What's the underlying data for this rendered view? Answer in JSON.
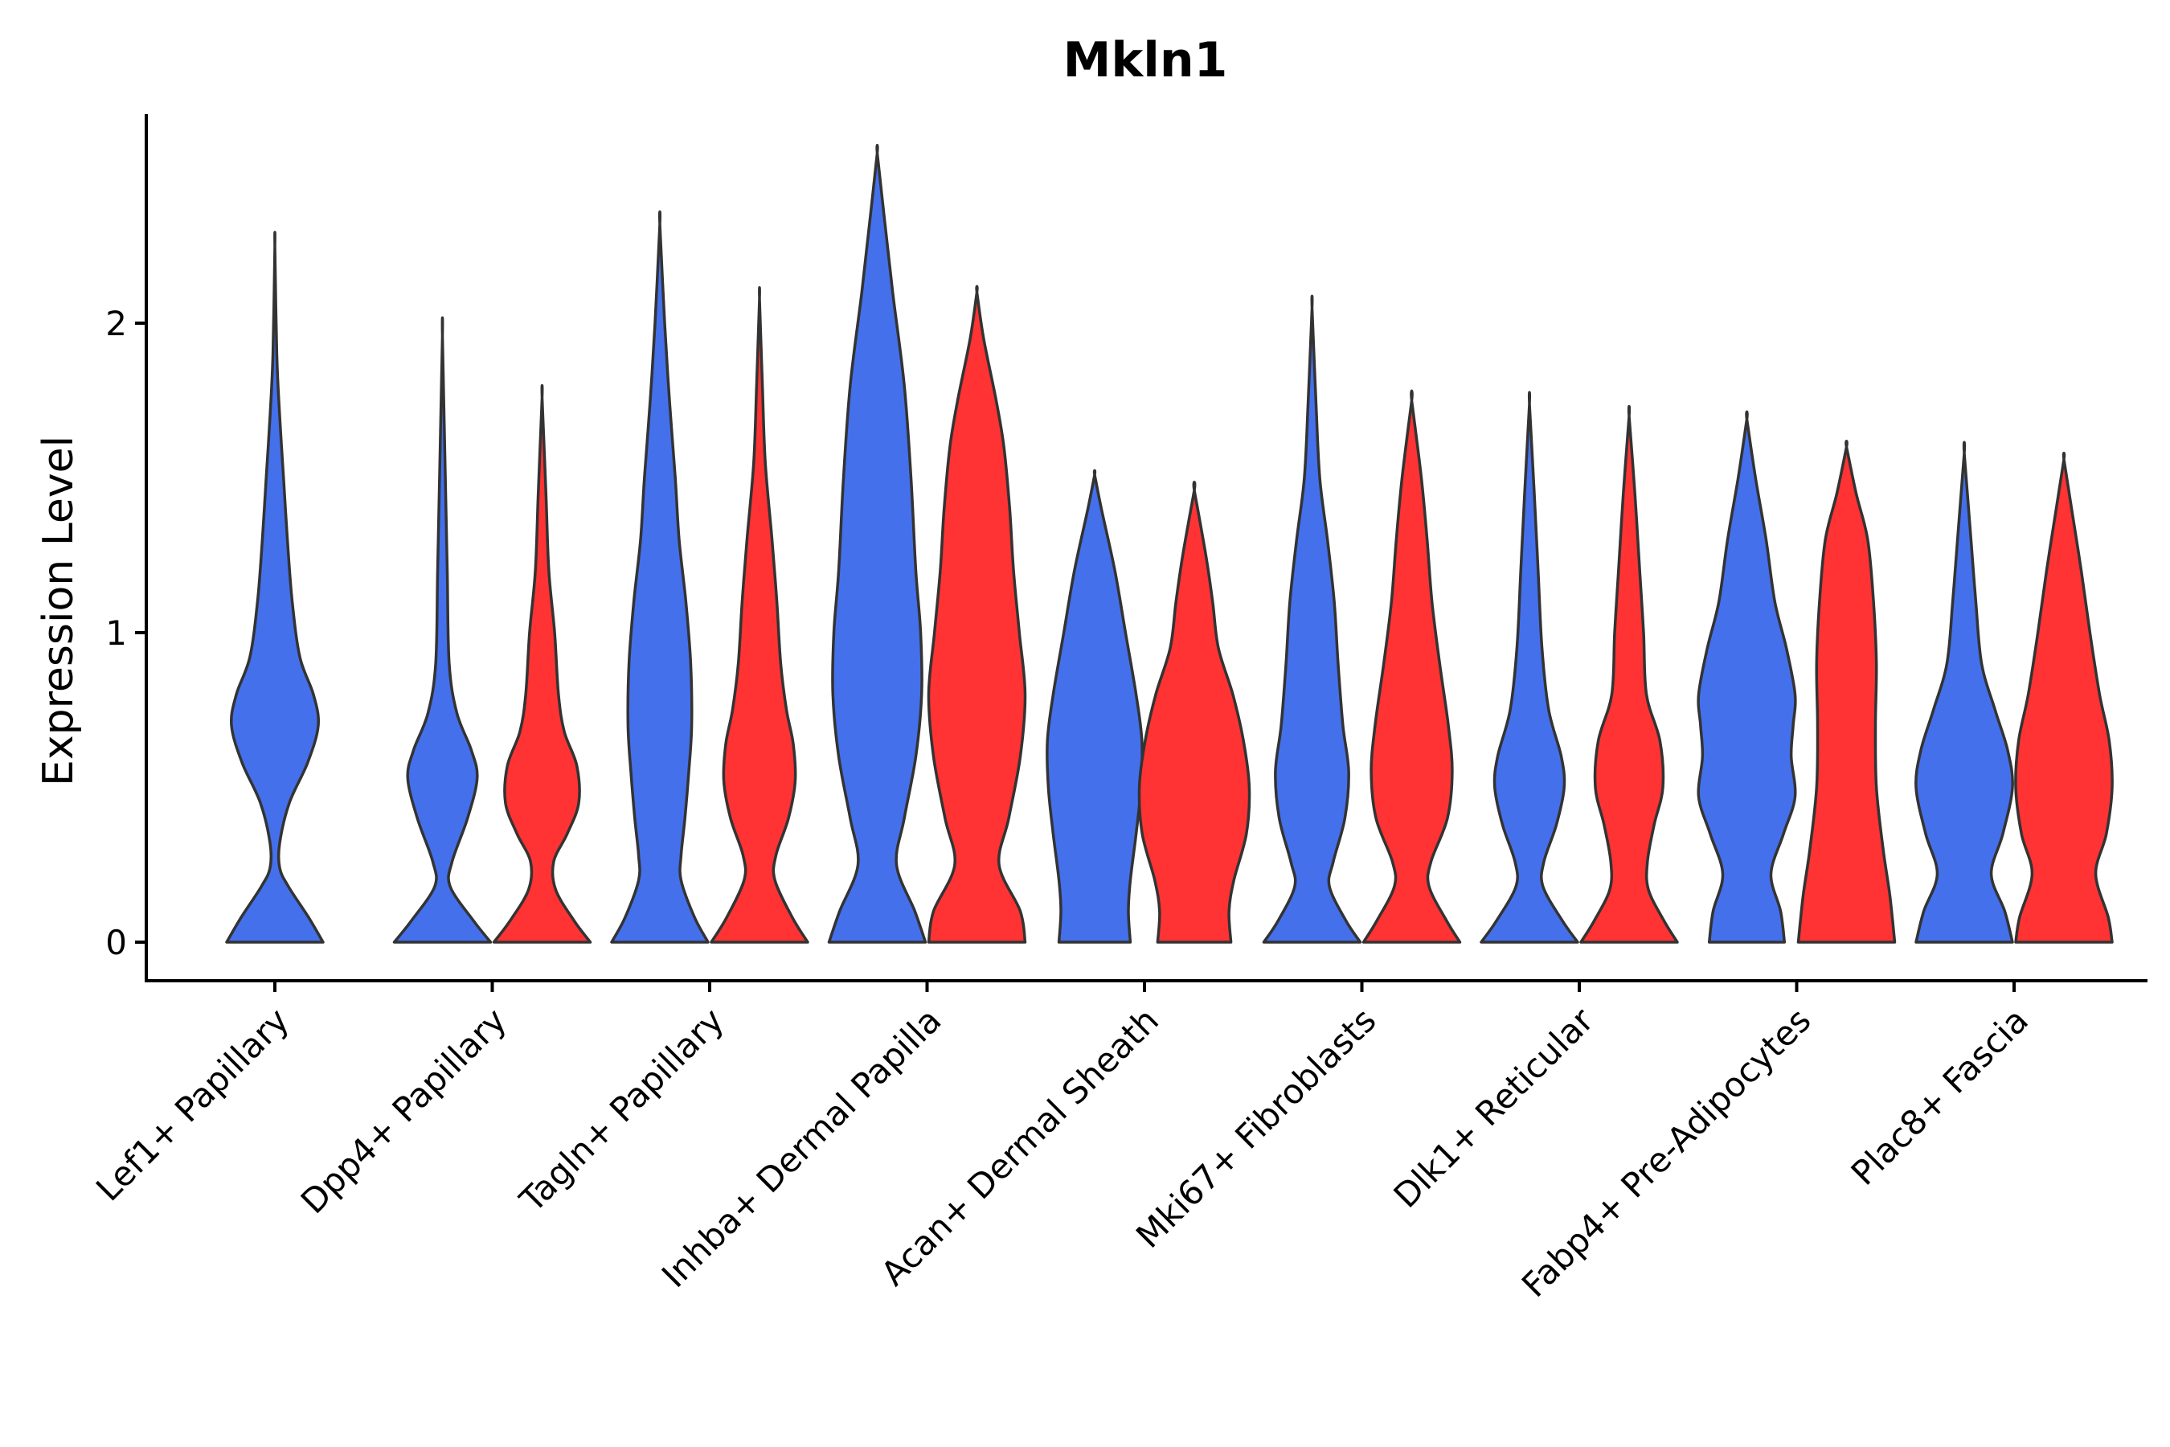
{
  "chart_data": {
    "type": "violin",
    "title": "Mkln1",
    "xlabel": "",
    "ylabel": "Expression Level",
    "ylim": [
      -0.13,
      2.68
    ],
    "yticks": [
      0,
      1,
      2
    ],
    "categories": [
      "Lef1+ Papillary",
      "Dpp4+ Papillary",
      "Tagln+ Papillary",
      "Inhba+ Dermal Papilla",
      "Acan+ Dermal Sheath",
      "Mki67+ Fibroblasts",
      "Dlk1+ Reticular",
      "Fabp4+ Pre-Adipocytes",
      "Plac8+ Fascia"
    ],
    "colors": {
      "group1": "#4470EB",
      "group2": "#FF3333"
    },
    "violins": [
      {
        "category": "Lef1+ Papillary",
        "color": "#4470EB",
        "max": 2.25,
        "profile": [
          [
            0,
            0.5
          ],
          [
            0.08,
            0.35
          ],
          [
            0.18,
            0.14
          ],
          [
            0.24,
            0.05
          ],
          [
            0.32,
            0.05
          ],
          [
            0.45,
            0.15
          ],
          [
            0.58,
            0.34
          ],
          [
            0.7,
            0.45
          ],
          [
            0.8,
            0.4
          ],
          [
            0.92,
            0.26
          ],
          [
            1.1,
            0.18
          ],
          [
            1.3,
            0.13
          ],
          [
            1.5,
            0.09
          ],
          [
            1.7,
            0.05
          ],
          [
            1.9,
            0.02
          ],
          [
            2.25,
            0
          ]
        ]
      },
      {
        "category": "Dpp4+ Papillary",
        "color": "#4470EB",
        "max": 1.96,
        "profile": [
          [
            0,
            0.5
          ],
          [
            0.07,
            0.32
          ],
          [
            0.18,
            0.08
          ],
          [
            0.26,
            0.1
          ],
          [
            0.4,
            0.26
          ],
          [
            0.53,
            0.36
          ],
          [
            0.62,
            0.3
          ],
          [
            0.74,
            0.15
          ],
          [
            0.9,
            0.07
          ],
          [
            1.2,
            0.05
          ],
          [
            1.5,
            0.03
          ],
          [
            1.96,
            0
          ]
        ]
      },
      {
        "category": "Dpp4+ Papillary",
        "color": "#FF3333",
        "max": 1.76,
        "profile": [
          [
            0,
            0.5
          ],
          [
            0.07,
            0.33
          ],
          [
            0.17,
            0.14
          ],
          [
            0.26,
            0.12
          ],
          [
            0.35,
            0.26
          ],
          [
            0.45,
            0.38
          ],
          [
            0.57,
            0.36
          ],
          [
            0.68,
            0.23
          ],
          [
            0.8,
            0.17
          ],
          [
            1.0,
            0.13
          ],
          [
            1.2,
            0.07
          ],
          [
            1.45,
            0.04
          ],
          [
            1.76,
            0
          ]
        ]
      },
      {
        "category": "Tagln+ Papillary",
        "color": "#4470EB",
        "max": 2.32,
        "profile": [
          [
            0,
            0.5
          ],
          [
            0.08,
            0.36
          ],
          [
            0.2,
            0.22
          ],
          [
            0.28,
            0.22
          ],
          [
            0.4,
            0.26
          ],
          [
            0.55,
            0.3
          ],
          [
            0.7,
            0.33
          ],
          [
            0.9,
            0.32
          ],
          [
            1.1,
            0.27
          ],
          [
            1.3,
            0.2
          ],
          [
            1.5,
            0.16
          ],
          [
            1.75,
            0.1
          ],
          [
            2.0,
            0.05
          ],
          [
            2.32,
            0
          ]
        ]
      },
      {
        "category": "Tagln+ Papillary",
        "color": "#FF3333",
        "max": 2.08,
        "profile": [
          [
            0,
            0.5
          ],
          [
            0.08,
            0.34
          ],
          [
            0.2,
            0.16
          ],
          [
            0.28,
            0.17
          ],
          [
            0.4,
            0.3
          ],
          [
            0.52,
            0.37
          ],
          [
            0.64,
            0.35
          ],
          [
            0.75,
            0.28
          ],
          [
            0.9,
            0.22
          ],
          [
            1.1,
            0.18
          ],
          [
            1.3,
            0.13
          ],
          [
            1.55,
            0.06
          ],
          [
            1.8,
            0.03
          ],
          [
            2.08,
            0
          ]
        ]
      },
      {
        "category": "Inhba+ Dermal Papilla",
        "color": "#4470EB",
        "max": 2.55,
        "profile": [
          [
            0,
            0.5
          ],
          [
            0.1,
            0.39
          ],
          [
            0.25,
            0.2
          ],
          [
            0.4,
            0.28
          ],
          [
            0.6,
            0.4
          ],
          [
            0.8,
            0.46
          ],
          [
            1.0,
            0.45
          ],
          [
            1.2,
            0.4
          ],
          [
            1.5,
            0.35
          ],
          [
            1.8,
            0.28
          ],
          [
            2.1,
            0.16
          ],
          [
            2.35,
            0.07
          ],
          [
            2.55,
            0
          ]
        ]
      },
      {
        "category": "Inhba+ Dermal Papilla",
        "color": "#FF3333",
        "max": 2.1,
        "profile": [
          [
            0,
            0.5
          ],
          [
            0.1,
            0.45
          ],
          [
            0.25,
            0.23
          ],
          [
            0.4,
            0.33
          ],
          [
            0.6,
            0.45
          ],
          [
            0.8,
            0.5
          ],
          [
            1.0,
            0.44
          ],
          [
            1.2,
            0.38
          ],
          [
            1.4,
            0.34
          ],
          [
            1.6,
            0.28
          ],
          [
            1.75,
            0.2
          ],
          [
            1.95,
            0.07
          ],
          [
            2.1,
            0
          ]
        ]
      },
      {
        "category": "Acan+ Dermal Sheath",
        "color": "#4470EB",
        "max": 1.51,
        "profile": [
          [
            0,
            0.37
          ],
          [
            0.1,
            0.35
          ],
          [
            0.2,
            0.37
          ],
          [
            0.35,
            0.43
          ],
          [
            0.5,
            0.48
          ],
          [
            0.65,
            0.49
          ],
          [
            0.8,
            0.43
          ],
          [
            1.0,
            0.32
          ],
          [
            1.2,
            0.21
          ],
          [
            1.4,
            0.07
          ],
          [
            1.51,
            0
          ]
        ]
      },
      {
        "category": "Acan+ Dermal Sheath",
        "color": "#FF3333",
        "max": 1.46,
        "profile": [
          [
            0,
            0.38
          ],
          [
            0.1,
            0.36
          ],
          [
            0.2,
            0.41
          ],
          [
            0.35,
            0.54
          ],
          [
            0.5,
            0.57
          ],
          [
            0.65,
            0.51
          ],
          [
            0.8,
            0.4
          ],
          [
            0.95,
            0.25
          ],
          [
            1.1,
            0.19
          ],
          [
            1.25,
            0.12
          ],
          [
            1.46,
            0
          ]
        ]
      },
      {
        "category": "Mki67+ Fibroblasts",
        "color": "#4470EB",
        "max": 2.05,
        "profile": [
          [
            0,
            0.5
          ],
          [
            0.07,
            0.35
          ],
          [
            0.18,
            0.18
          ],
          [
            0.26,
            0.22
          ],
          [
            0.4,
            0.34
          ],
          [
            0.55,
            0.38
          ],
          [
            0.7,
            0.32
          ],
          [
            0.9,
            0.27
          ],
          [
            1.1,
            0.23
          ],
          [
            1.3,
            0.16
          ],
          [
            1.5,
            0.08
          ],
          [
            1.75,
            0.04
          ],
          [
            2.05,
            0
          ]
        ]
      },
      {
        "category": "Mki67+ Fibroblasts",
        "color": "#FF3333",
        "max": 1.75,
        "profile": [
          [
            0,
            0.5
          ],
          [
            0.07,
            0.36
          ],
          [
            0.18,
            0.18
          ],
          [
            0.26,
            0.2
          ],
          [
            0.4,
            0.37
          ],
          [
            0.55,
            0.42
          ],
          [
            0.7,
            0.38
          ],
          [
            0.9,
            0.29
          ],
          [
            1.1,
            0.21
          ],
          [
            1.3,
            0.16
          ],
          [
            1.5,
            0.1
          ],
          [
            1.75,
            0
          ]
        ]
      },
      {
        "category": "Dlk1+ Reticular",
        "color": "#4470EB",
        "max": 1.74,
        "profile": [
          [
            0,
            0.5
          ],
          [
            0.07,
            0.34
          ],
          [
            0.18,
            0.14
          ],
          [
            0.26,
            0.15
          ],
          [
            0.38,
            0.28
          ],
          [
            0.5,
            0.36
          ],
          [
            0.6,
            0.33
          ],
          [
            0.75,
            0.2
          ],
          [
            0.95,
            0.13
          ],
          [
            1.2,
            0.09
          ],
          [
            1.45,
            0.05
          ],
          [
            1.74,
            0
          ]
        ]
      },
      {
        "category": "Dlk1+ Reticular",
        "color": "#FF3333",
        "max": 1.7,
        "profile": [
          [
            0,
            0.5
          ],
          [
            0.07,
            0.36
          ],
          [
            0.17,
            0.2
          ],
          [
            0.26,
            0.19
          ],
          [
            0.38,
            0.26
          ],
          [
            0.5,
            0.35
          ],
          [
            0.65,
            0.32
          ],
          [
            0.8,
            0.18
          ],
          [
            1.0,
            0.15
          ],
          [
            1.2,
            0.11
          ],
          [
            1.45,
            0.06
          ],
          [
            1.7,
            0
          ]
        ]
      },
      {
        "category": "Fabp4+ Pre-Adipocytes",
        "color": "#4470EB",
        "max": 1.69,
        "profile": [
          [
            0,
            0.39
          ],
          [
            0.1,
            0.35
          ],
          [
            0.22,
            0.25
          ],
          [
            0.35,
            0.38
          ],
          [
            0.47,
            0.5
          ],
          [
            0.6,
            0.46
          ],
          [
            0.7,
            0.48
          ],
          [
            0.8,
            0.5
          ],
          [
            0.95,
            0.41
          ],
          [
            1.1,
            0.29
          ],
          [
            1.3,
            0.2
          ],
          [
            1.5,
            0.09
          ],
          [
            1.69,
            0
          ]
        ]
      },
      {
        "category": "Fabp4+ Pre-Adipocytes",
        "color": "#FF3333",
        "max": 1.6,
        "profile": [
          [
            0,
            0.5
          ],
          [
            0.15,
            0.45
          ],
          [
            0.3,
            0.38
          ],
          [
            0.5,
            0.31
          ],
          [
            0.7,
            0.3
          ],
          [
            0.9,
            0.31
          ],
          [
            1.1,
            0.28
          ],
          [
            1.3,
            0.22
          ],
          [
            1.45,
            0.1
          ],
          [
            1.6,
            0
          ]
        ]
      },
      {
        "category": "Plac8+ Fascia",
        "color": "#4470EB",
        "max": 1.58,
        "profile": [
          [
            0,
            0.5
          ],
          [
            0.1,
            0.42
          ],
          [
            0.22,
            0.28
          ],
          [
            0.35,
            0.4
          ],
          [
            0.5,
            0.5
          ],
          [
            0.62,
            0.45
          ],
          [
            0.75,
            0.32
          ],
          [
            0.9,
            0.18
          ],
          [
            1.1,
            0.12
          ],
          [
            1.3,
            0.07
          ],
          [
            1.58,
            0
          ]
        ]
      },
      {
        "category": "Plac8+ Fascia",
        "color": "#FF3333",
        "max": 1.56,
        "profile": [
          [
            0,
            0.5
          ],
          [
            0.08,
            0.46
          ],
          [
            0.22,
            0.33
          ],
          [
            0.35,
            0.44
          ],
          [
            0.5,
            0.5
          ],
          [
            0.65,
            0.47
          ],
          [
            0.8,
            0.37
          ],
          [
            1.0,
            0.27
          ],
          [
            1.2,
            0.18
          ],
          [
            1.4,
            0.08
          ],
          [
            1.56,
            0
          ]
        ]
      }
    ]
  }
}
